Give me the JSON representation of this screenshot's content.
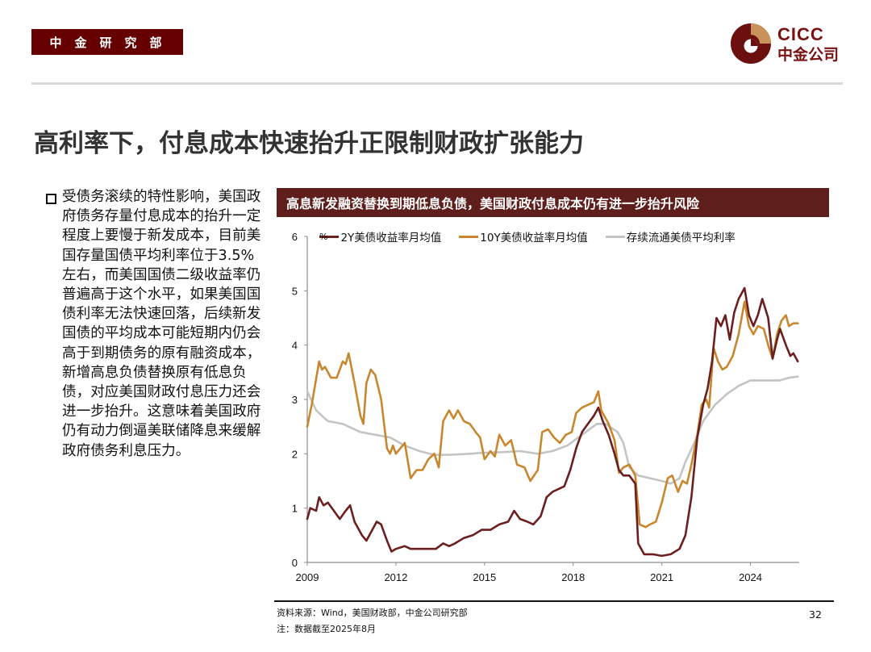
{
  "header": {
    "dept_badge": "中金研究部",
    "logo": {
      "text_en": "CICC",
      "text_cn": "中金公司"
    }
  },
  "page_title": "高利率下，付息成本快速抬升正限制财政扩张能力",
  "bullet": {
    "icon": "hollow-square-bullet",
    "text": "受债务滚续的特性影响，美国政府债务存量付息成本的抬升一定程度上要慢于新发成本，目前美国存量国债平均利率位于3.5%左右，而美国国债二级收益率仍普遍高于这个水平，如果美国国债利率无法快速回落，后续新发国债的平均成本可能短期内仍会高于到期债务的原有融资成本，新增高息负债替换原有低息负债，对应美国财政付息压力还会进一步抬升。这意味着美国政府仍有动力倒逼美联储降息来缓解政府债务利息压力。"
  },
  "chart_header": "高息新发融资替换到期低息负债，美国财政付息成本仍有进一步抬升风险",
  "footer": {
    "source": "资料来源：Wind，美国财政部，中金公司研究部",
    "note": "注：数据截至2025年8月",
    "page_number": "32"
  },
  "colors": {
    "brand_dark_red": "#660000",
    "chart_header_bg": "#5e1f1c",
    "series_2y": "#6b1f1f",
    "series_10y": "#c8862e",
    "series_avg": "#c4c4c4",
    "axis": "#8c8c8c"
  },
  "chart_data": {
    "type": "line",
    "title": "高息新发融资替换到期低息负债，美国财政付息成本仍有进一步抬升风险",
    "xlabel": "",
    "ylabel": "%",
    "unit_label": "%",
    "xlim": [
      2009,
      2025.65
    ],
    "ylim": [
      0,
      6
    ],
    "x_ticks": [
      "2009",
      "2012",
      "2015",
      "2018",
      "2021",
      "2024"
    ],
    "x_tick_values": [
      2009,
      2012,
      2015,
      2018,
      2021,
      2024
    ],
    "y_ticks": [
      "0",
      "1",
      "2",
      "3",
      "4",
      "5",
      "6"
    ],
    "grid": false,
    "legend_position": "top",
    "series": [
      {
        "name": "2Y美债收益率月均值",
        "color": "#6b1f1f",
        "x": [
          2009.0,
          2009.1,
          2009.3,
          2009.4,
          2009.55,
          2009.7,
          2009.9,
          2010.1,
          2010.3,
          2010.45,
          2010.6,
          2010.85,
          2011.0,
          2011.2,
          2011.35,
          2011.5,
          2011.7,
          2011.85,
          2012.0,
          2012.3,
          2012.5,
          2013.0,
          2013.35,
          2013.6,
          2013.8,
          2014.0,
          2014.3,
          2014.6,
          2014.9,
          2015.2,
          2015.5,
          2015.8,
          2016.0,
          2016.2,
          2016.45,
          2016.65,
          2016.9,
          2017.1,
          2017.3,
          2017.5,
          2017.7,
          2017.9,
          2018.1,
          2018.3,
          2018.5,
          2018.7,
          2018.85,
          2019.0,
          2019.2,
          2019.4,
          2019.55,
          2019.7,
          2019.9,
          2020.1,
          2020.2,
          2020.4,
          2020.7,
          2021.0,
          2021.3,
          2021.6,
          2021.8,
          2022.0,
          2022.2,
          2022.4,
          2022.55,
          2022.7,
          2022.85,
          2023.0,
          2023.15,
          2023.3,
          2023.45,
          2023.6,
          2023.8,
          2023.95,
          2024.1,
          2024.25,
          2024.4,
          2024.6,
          2024.75,
          2024.9,
          2025.0,
          2025.2,
          2025.35,
          2025.45,
          2025.6
        ],
        "values": [
          0.8,
          1.0,
          0.95,
          1.2,
          1.05,
          1.1,
          0.95,
          0.8,
          0.95,
          1.05,
          0.75,
          0.5,
          0.4,
          0.6,
          0.75,
          0.7,
          0.4,
          0.2,
          0.25,
          0.3,
          0.25,
          0.25,
          0.25,
          0.35,
          0.3,
          0.35,
          0.45,
          0.5,
          0.6,
          0.6,
          0.7,
          0.75,
          0.95,
          0.8,
          0.75,
          0.7,
          0.85,
          1.2,
          1.3,
          1.35,
          1.4,
          1.7,
          2.1,
          2.4,
          2.55,
          2.7,
          2.85,
          2.6,
          2.35,
          2.0,
          1.7,
          1.6,
          1.6,
          1.45,
          0.35,
          0.15,
          0.15,
          0.12,
          0.15,
          0.25,
          0.5,
          1.2,
          2.3,
          2.9,
          3.2,
          3.7,
          4.5,
          4.35,
          4.55,
          4.1,
          4.6,
          4.85,
          5.05,
          4.55,
          4.35,
          4.55,
          4.85,
          4.5,
          3.75,
          4.1,
          4.3,
          4.0,
          3.8,
          3.85,
          3.7
        ]
      },
      {
        "name": "10Y美债收益率月均值",
        "color": "#c8862e",
        "x": [
          2009.0,
          2009.15,
          2009.4,
          2009.5,
          2009.6,
          2009.8,
          2010.0,
          2010.2,
          2010.3,
          2010.4,
          2010.6,
          2010.8,
          2010.9,
          2011.0,
          2011.15,
          2011.3,
          2011.5,
          2011.7,
          2011.8,
          2011.9,
          2012.0,
          2012.3,
          2012.5,
          2012.7,
          2012.9,
          2013.1,
          2013.3,
          2013.45,
          2013.6,
          2013.8,
          2013.95,
          2014.1,
          2014.3,
          2014.5,
          2014.7,
          2014.85,
          2015.0,
          2015.2,
          2015.35,
          2015.5,
          2015.7,
          2015.9,
          2016.1,
          2016.35,
          2016.55,
          2016.8,
          2016.95,
          2017.15,
          2017.35,
          2017.55,
          2017.75,
          2017.95,
          2018.1,
          2018.3,
          2018.5,
          2018.7,
          2018.85,
          2018.95,
          2019.2,
          2019.4,
          2019.55,
          2019.7,
          2019.9,
          2020.1,
          2020.25,
          2020.45,
          2020.6,
          2020.8,
          2021.0,
          2021.2,
          2021.35,
          2021.55,
          2021.7,
          2021.85,
          2022.0,
          2022.2,
          2022.35,
          2022.5,
          2022.6,
          2022.75,
          2022.9,
          2023.05,
          2023.2,
          2023.4,
          2023.6,
          2023.8,
          2023.95,
          2024.1,
          2024.25,
          2024.45,
          2024.6,
          2024.75,
          2024.9,
          2025.05,
          2025.2,
          2025.3,
          2025.45,
          2025.6
        ],
        "values": [
          2.5,
          2.9,
          3.7,
          3.55,
          3.6,
          3.4,
          3.4,
          3.7,
          3.65,
          3.85,
          3.3,
          2.7,
          2.55,
          3.3,
          3.55,
          3.45,
          3.0,
          2.1,
          2.0,
          2.15,
          2.0,
          2.2,
          1.55,
          1.7,
          1.7,
          1.9,
          2.0,
          1.75,
          2.6,
          2.8,
          2.65,
          2.8,
          2.6,
          2.55,
          2.4,
          2.3,
          1.9,
          2.05,
          1.95,
          2.35,
          2.15,
          2.25,
          1.8,
          1.75,
          1.5,
          1.7,
          2.4,
          2.45,
          2.3,
          2.2,
          2.35,
          2.4,
          2.75,
          2.85,
          2.9,
          2.95,
          3.15,
          2.8,
          2.55,
          2.25,
          1.65,
          1.75,
          1.8,
          1.6,
          0.7,
          0.65,
          0.7,
          0.75,
          1.1,
          1.55,
          1.6,
          1.3,
          1.5,
          1.45,
          1.8,
          2.35,
          2.9,
          3.0,
          2.85,
          3.95,
          3.7,
          3.55,
          3.6,
          3.8,
          4.2,
          4.8,
          4.35,
          4.2,
          4.35,
          4.3,
          4.0,
          3.75,
          4.2,
          4.45,
          4.55,
          4.35,
          4.4,
          4.4
        ]
      },
      {
        "name": "存续流通美债平均利率",
        "color": "#c4c4c4",
        "x": [
          2009.0,
          2009.3,
          2009.7,
          2010.2,
          2010.8,
          2011.3,
          2011.8,
          2012.3,
          2012.8,
          2013.3,
          2013.8,
          2014.5,
          2015.0,
          2015.6,
          2016.2,
          2016.8,
          2017.3,
          2017.8,
          2018.3,
          2018.8,
          2019.1,
          2019.5,
          2019.7,
          2019.9,
          2020.2,
          2020.6,
          2021.0,
          2021.3,
          2021.6,
          2021.8,
          2022.1,
          2022.4,
          2022.8,
          2023.2,
          2023.6,
          2024.0,
          2024.3,
          2024.6,
          2025.0,
          2025.3,
          2025.6
        ],
        "values": [
          3.15,
          2.8,
          2.6,
          2.55,
          2.4,
          2.35,
          2.3,
          2.15,
          2.05,
          1.98,
          1.98,
          2.0,
          2.02,
          2.03,
          2.05,
          2.0,
          2.05,
          2.15,
          2.35,
          2.55,
          2.55,
          2.4,
          2.2,
          1.75,
          1.6,
          1.55,
          1.5,
          1.45,
          1.55,
          1.85,
          2.2,
          2.6,
          2.9,
          3.1,
          3.25,
          3.35,
          3.35,
          3.35,
          3.35,
          3.4,
          3.42
        ]
      }
    ]
  }
}
